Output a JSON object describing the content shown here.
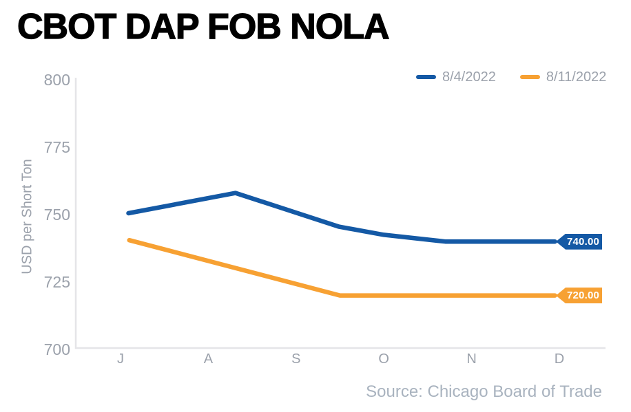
{
  "chart_data": {
    "type": "line",
    "title": "CBOT DAP FOB NOLA",
    "ylabel": "USD per Short Ton",
    "xlabel": "",
    "x_tick_labels": [
      "J",
      "A",
      "S",
      "O",
      "N",
      "D"
    ],
    "y_tick_values": [
      800,
      775,
      750,
      725,
      700
    ],
    "ylim": [
      700,
      800
    ],
    "grid": false,
    "legend_position": "top-right",
    "source": "Source: Chicago Board of Trade",
    "series": [
      {
        "name": "8/4/2022",
        "color": "#1459A5",
        "end_label": "740.00",
        "points": [
          [
            0.09,
            750.5
          ],
          [
            1.31,
            758
          ],
          [
            2.49,
            745.5
          ],
          [
            3.0,
            742.5
          ],
          [
            3.7,
            740
          ],
          [
            4.95,
            740
          ]
        ]
      },
      {
        "name": "8/11/2022",
        "color": "#F7A133",
        "end_label": "720.00",
        "points": [
          [
            0.1,
            740.5
          ],
          [
            2.5,
            720
          ],
          [
            4.95,
            720
          ]
        ]
      }
    ],
    "colors": {
      "tick_label": "#9BA1AB",
      "axis_line": "#E5E5E8",
      "legend_text": "#9BA1AB",
      "source_text": "#A9B3BF",
      "title_text": "#000000"
    }
  }
}
